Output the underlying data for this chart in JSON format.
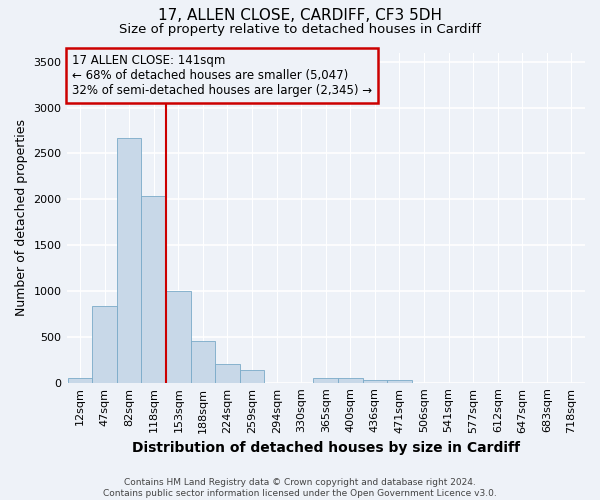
{
  "title": "17, ALLEN CLOSE, CARDIFF, CF3 5DH",
  "subtitle": "Size of property relative to detached houses in Cardiff",
  "xlabel": "Distribution of detached houses by size in Cardiff",
  "ylabel": "Number of detached properties",
  "footnote": "Contains HM Land Registry data © Crown copyright and database right 2024.\nContains public sector information licensed under the Open Government Licence v3.0.",
  "categories": [
    "12sqm",
    "47sqm",
    "82sqm",
    "118sqm",
    "153sqm",
    "188sqm",
    "224sqm",
    "259sqm",
    "294sqm",
    "330sqm",
    "365sqm",
    "400sqm",
    "436sqm",
    "471sqm",
    "506sqm",
    "541sqm",
    "577sqm",
    "612sqm",
    "647sqm",
    "683sqm",
    "718sqm"
  ],
  "bar_values": [
    55,
    840,
    2670,
    2040,
    1000,
    450,
    200,
    135,
    0,
    0,
    55,
    55,
    25,
    25,
    0,
    0,
    0,
    0,
    0,
    0,
    0
  ],
  "bar_color": "#c8d8e8",
  "bar_edge_color": "#7aaac8",
  "property_line_x": 3.5,
  "property_label": "17 ALLEN CLOSE: 141sqm",
  "pct_smaller": "68% of detached houses are smaller (5,047)",
  "pct_larger": "32% of semi-detached houses are larger (2,345)",
  "annotation_box_color": "#cc0000",
  "ylim": [
    0,
    3600
  ],
  "yticks": [
    0,
    500,
    1000,
    1500,
    2000,
    2500,
    3000,
    3500
  ],
  "background_color": "#eef2f8",
  "grid_color": "#ffffff",
  "title_fontsize": 11,
  "subtitle_fontsize": 9.5,
  "axis_label_fontsize": 9,
  "tick_fontsize": 8
}
